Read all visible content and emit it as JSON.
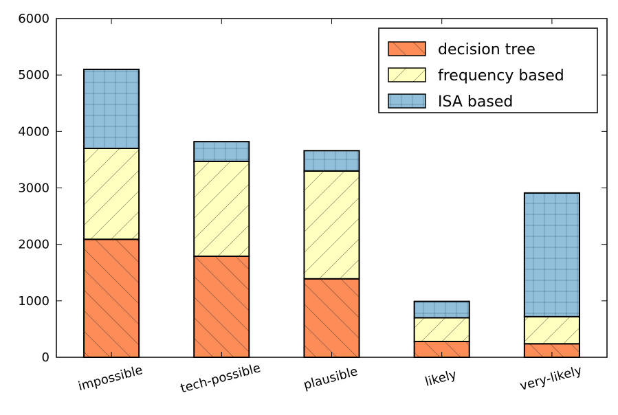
{
  "chart_data": {
    "type": "bar",
    "stacked": true,
    "title": "",
    "xlabel": "",
    "ylabel": "",
    "ylim": [
      0,
      6000
    ],
    "yticks": [
      0,
      1000,
      2000,
      3000,
      4000,
      5000,
      6000
    ],
    "categories": [
      "impossible",
      "tech-possible",
      "plausible",
      "likely",
      "very-likely"
    ],
    "series": [
      {
        "name": "decision tree",
        "color": "#fc8d59",
        "hatch": "backslash",
        "values": [
          2090,
          1790,
          1390,
          280,
          240
        ]
      },
      {
        "name": "frequency based",
        "color": "#ffffbf",
        "hatch": "slash",
        "values": [
          1610,
          1680,
          1910,
          420,
          480
        ]
      },
      {
        "name": "ISA based",
        "color": "#91bfdb",
        "hatch": "grid",
        "values": [
          1400,
          350,
          360,
          290,
          2190
        ]
      }
    ],
    "legend_position": "top-right",
    "grid": false
  }
}
